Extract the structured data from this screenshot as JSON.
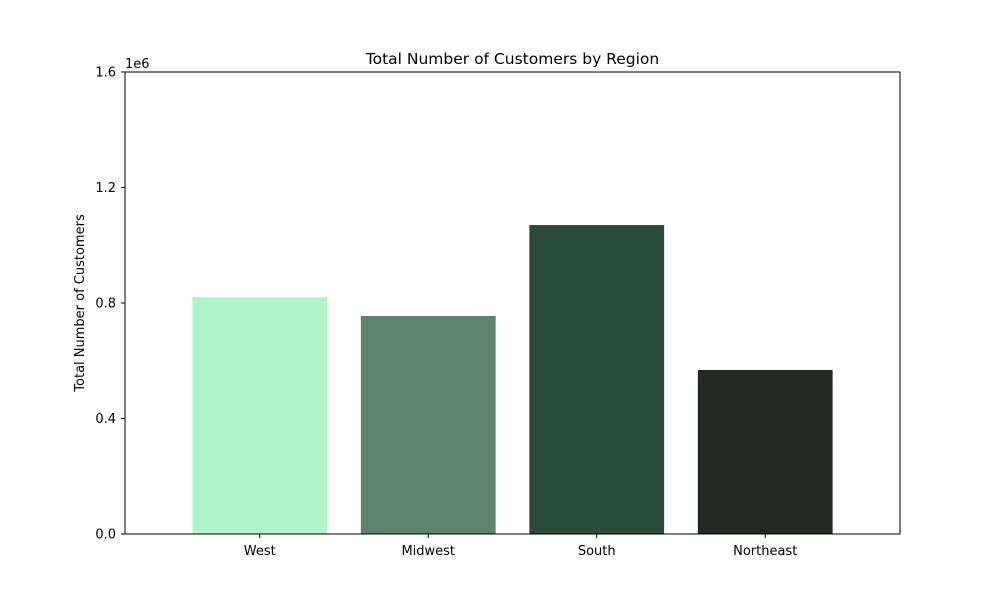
{
  "chart_data": {
    "type": "bar",
    "title": "Total Number of Customers by Region",
    "xlabel": "",
    "ylabel": "Total Number of Customers",
    "categories": [
      "West",
      "Midwest",
      "South",
      "Northeast"
    ],
    "values": [
      820000,
      755000,
      1070000,
      568000
    ],
    "colors": [
      "#b0f5c9",
      "#5b846b",
      "#2c4a38",
      "#222923"
    ],
    "ylim": [
      0,
      1600000
    ],
    "y_ticks": [
      0,
      400000,
      800000,
      1200000,
      1600000
    ],
    "y_tick_labels": [
      "0.0",
      "0.4",
      "0.8",
      "1.2",
      "1.6"
    ],
    "y_offset_label": "1e6",
    "grid": false,
    "legend": "none"
  }
}
